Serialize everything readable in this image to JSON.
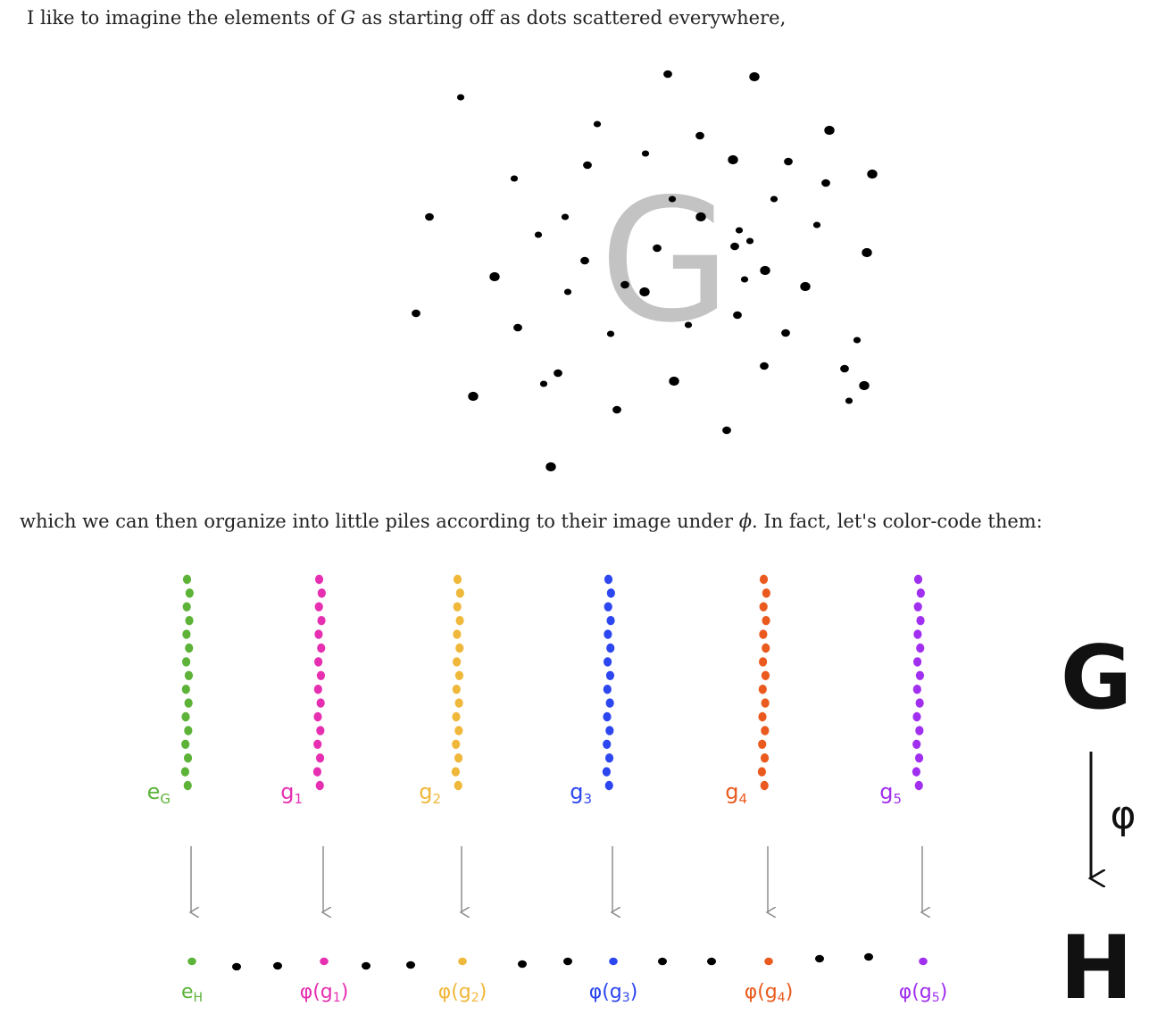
{
  "paragraphs": {
    "p1": {
      "before": "I like to imagine the elements of ",
      "symbol": "G",
      "after": " as starting off as dots scattered everywhere,"
    },
    "p2": {
      "before": "which we can then organize into little piles according to their image under ",
      "symbol": "ϕ",
      "after": ". In fact, let's color-code them:"
    }
  },
  "figure1": {
    "big_letter": "G",
    "letter_color": "#c3c3c3",
    "dot_color": "#000000"
  },
  "figure2": {
    "columns": [
      {
        "label": "e",
        "sub": "G",
        "image_label": "e",
        "image_sub": "H",
        "color": "#5cb338"
      },
      {
        "label": "g",
        "sub": "1",
        "image_label": "φ(g",
        "image_sub": "1",
        "color": "#e62fb1"
      },
      {
        "label": "g",
        "sub": "2",
        "image_label": "φ(g",
        "image_sub": "2",
        "color": "#f0b83a"
      },
      {
        "label": "g",
        "sub": "3",
        "image_label": "φ(g",
        "image_sub": "3",
        "color": "#2c46f0"
      },
      {
        "label": "g",
        "sub": "4",
        "image_label": "φ(g",
        "image_sub": "4",
        "color": "#ea5a1e"
      },
      {
        "label": "g",
        "sub": "5",
        "image_label": "φ(g",
        "image_sub": "5",
        "color": "#a12ff0"
      }
    ],
    "group_G": "G",
    "group_H": "H",
    "map_label": "φ",
    "arrow_color": "#8c8c8c"
  }
}
